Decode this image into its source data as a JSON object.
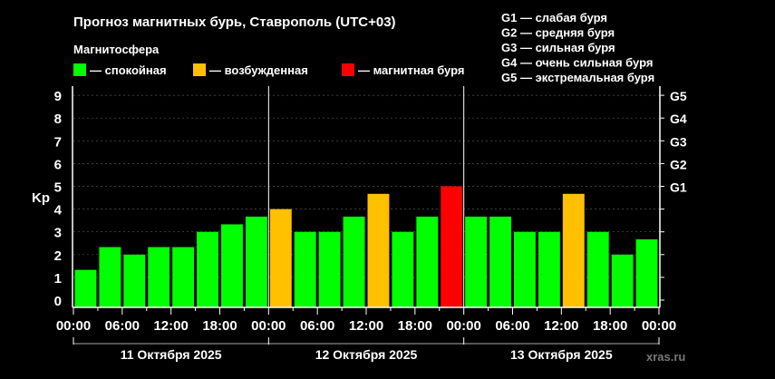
{
  "chart_data": {
    "type": "bar",
    "title": "Прогноз магнитных бурь, Ставрополь (UTC+03)",
    "legend_title": "Магнитосфера",
    "legend": [
      {
        "label": "— спокойная",
        "color": "#00ff00"
      },
      {
        "label": "— возбужденная",
        "color": "#ffc000"
      },
      {
        "label": "— магнитная буря",
        "color": "#ff0000"
      }
    ],
    "g_scale_legend": [
      "G1 — слабая буря",
      "G2 — средняя буря",
      "G3 — сильная буря",
      "G4 — очень сильная буря",
      "G5 — экстремальная буря"
    ],
    "ylabel": "Kp",
    "ylim": [
      0,
      9
    ],
    "yticks": [
      "0",
      "1",
      "2",
      "3",
      "4",
      "5",
      "6",
      "7",
      "8",
      "9"
    ],
    "right_ticks": [
      {
        "value": 5,
        "label": "G1"
      },
      {
        "value": 6,
        "label": "G2"
      },
      {
        "value": 7,
        "label": "G3"
      },
      {
        "value": 8,
        "label": "G4"
      },
      {
        "value": 9,
        "label": "G5"
      }
    ],
    "xticks": [
      "00:00",
      "06:00",
      "12:00",
      "18:00",
      "00:00",
      "06:00",
      "12:00",
      "18:00",
      "00:00",
      "06:00",
      "12:00",
      "18:00",
      "00:00"
    ],
    "days": [
      "11 Октября 2025",
      "12 Октября 2025",
      "13 Октября 2025"
    ],
    "values": [
      1.33,
      2.33,
      2.0,
      2.33,
      2.33,
      3.0,
      3.33,
      3.67,
      4.0,
      3.0,
      3.0,
      3.67,
      4.67,
      3.0,
      3.67,
      5.0,
      3.67,
      3.67,
      3.0,
      3.0,
      4.67,
      3.0,
      2.0,
      2.67
    ],
    "grid": true,
    "watermark": "xras.ru"
  }
}
